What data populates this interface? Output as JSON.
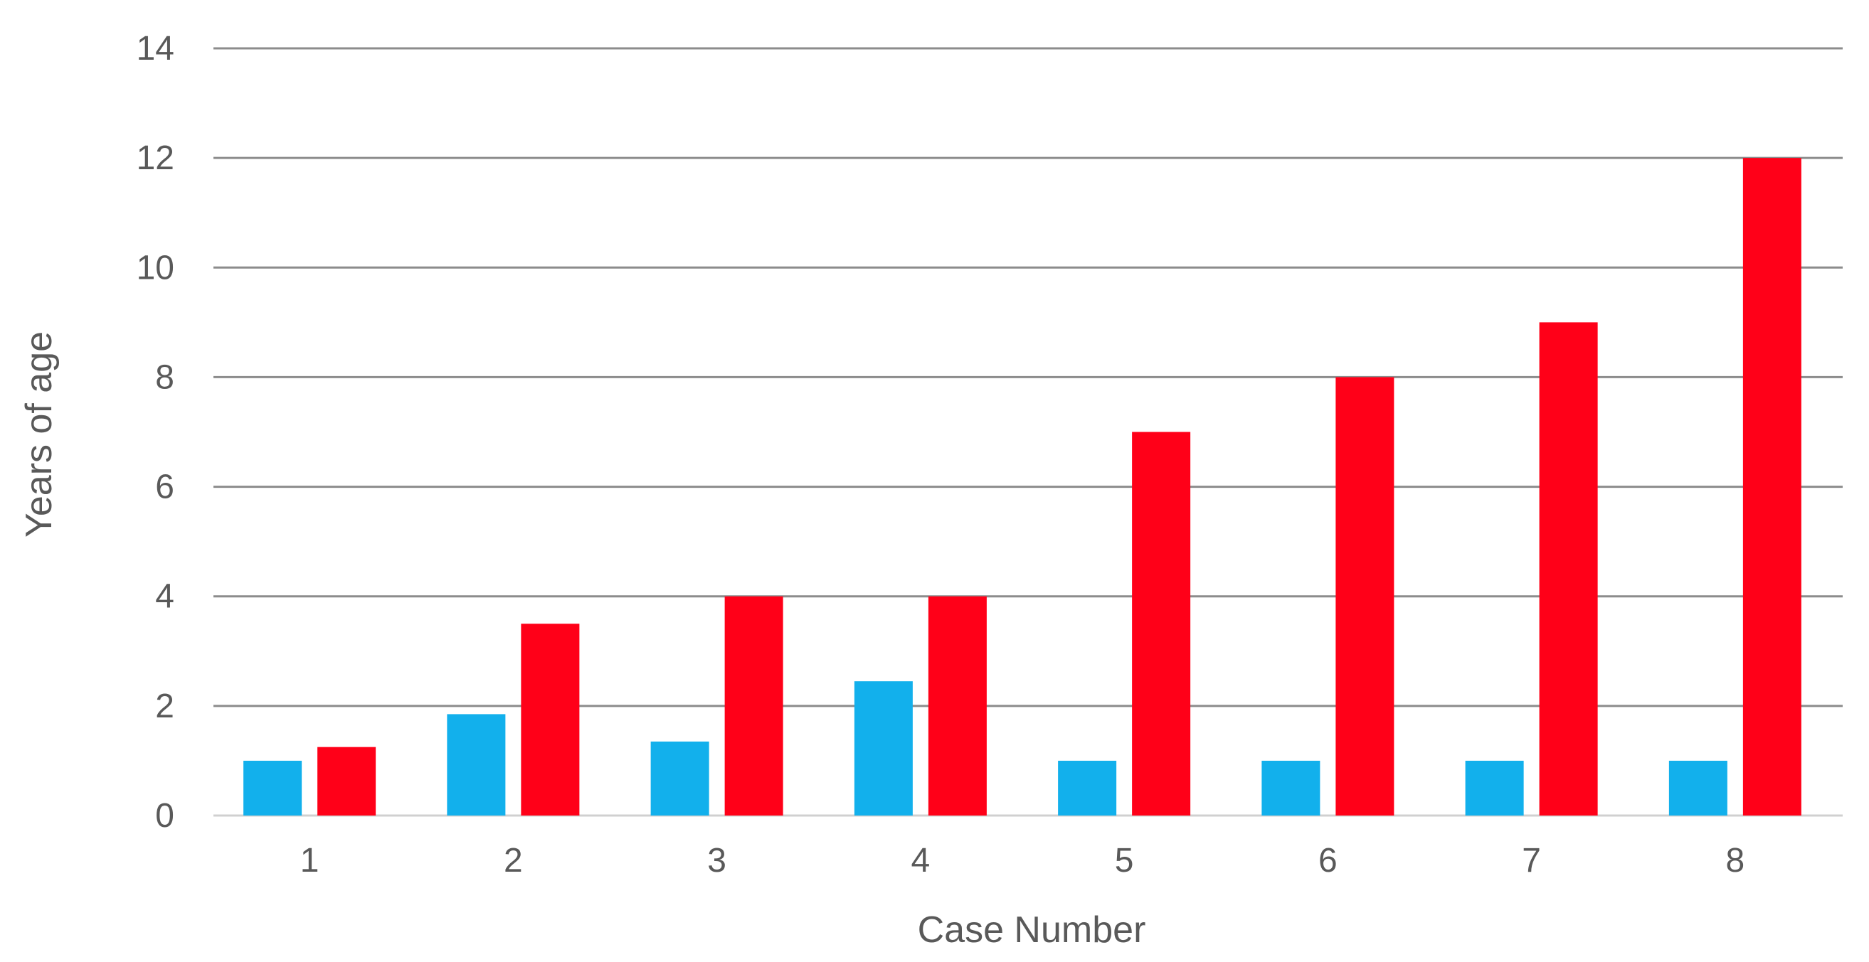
{
  "chart_data": {
    "type": "bar",
    "title": "",
    "xlabel": "Case Number",
    "ylabel": "Years of age",
    "categories": [
      "1",
      "2",
      "3",
      "4",
      "5",
      "6",
      "7",
      "8"
    ],
    "ylim": [
      0,
      14
    ],
    "yticks": [
      "0",
      "2",
      "4",
      "6",
      "8",
      "10",
      "12",
      "14"
    ],
    "grid": true,
    "legend": "none",
    "series": [
      {
        "color": "#12b0ec",
        "values": [
          1,
          1.85,
          1.35,
          2.45,
          1,
          1,
          1,
          1
        ]
      },
      {
        "color": "#ff0018",
        "values": [
          1.25,
          3.5,
          4,
          4,
          7,
          8,
          9,
          12
        ]
      }
    ]
  }
}
